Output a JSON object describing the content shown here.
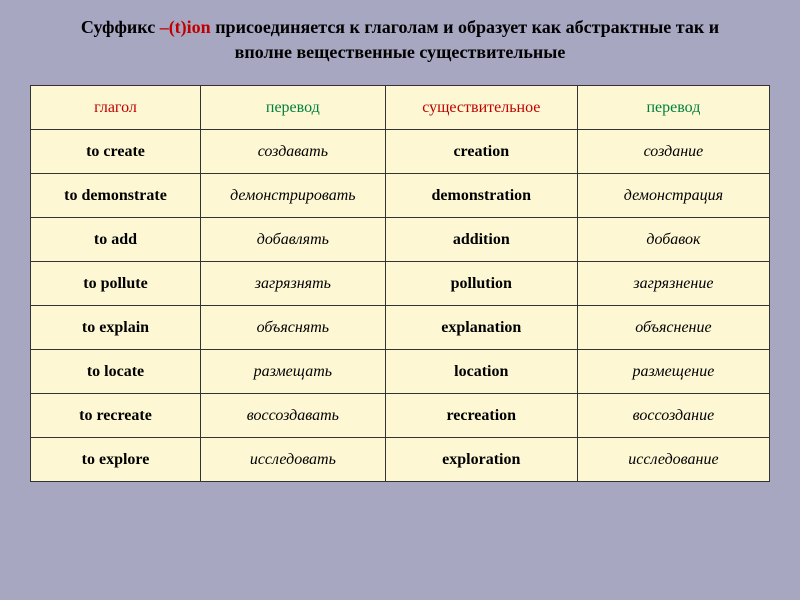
{
  "title": {
    "prefix": "Суффикс ",
    "suffix": "–(t)ion",
    "rest": " присоединяется к глаголам и образует как абстрактные так и вполне вещественные существительные"
  },
  "colors": {
    "background": "#a7a7c2",
    "table_bg": "#fdf8d3",
    "border": "#333333",
    "header_red": "#c00000",
    "header_green": "#008040",
    "text": "#000000"
  },
  "typography": {
    "title_fontsize": 18,
    "cell_fontsize": 16,
    "font_family": "Times New Roman"
  },
  "table": {
    "type": "table",
    "columns": [
      {
        "label": "глагол",
        "color": "#c00000",
        "width": "23%"
      },
      {
        "label": "перевод",
        "color": "#008040",
        "width": "25%"
      },
      {
        "label": "существительное",
        "color": "#c00000",
        "width": "26%"
      },
      {
        "label": "перевод",
        "color": "#008040",
        "width": "26%"
      }
    ],
    "rows": [
      {
        "verb": "to create",
        "trans1": "создавать",
        "noun": "creation",
        "trans2": "создание"
      },
      {
        "verb": "to demonstrate",
        "trans1": "демонстрировать",
        "noun": "demonstration",
        "trans2": "демонстрация"
      },
      {
        "verb": "to add",
        "trans1": "добавлять",
        "noun": "addition",
        "trans2": "добавок"
      },
      {
        "verb": "to pollute",
        "trans1": "загрязнять",
        "noun": "pollution",
        "trans2": "загрязнение"
      },
      {
        "verb": "to explain",
        "trans1": "объяснять",
        "noun": "explanation",
        "trans2": "объяснение"
      },
      {
        "verb": "to locate",
        "trans1": "размещать",
        "noun": "location",
        "trans2": "размещение"
      },
      {
        "verb": "to recreate",
        "trans1": "воссоздавать",
        "noun": "recreation",
        "trans2": "воссоздание"
      },
      {
        "verb": "to explore",
        "trans1": "исследовать",
        "noun": "exploration",
        "trans2": "исследование"
      }
    ]
  }
}
